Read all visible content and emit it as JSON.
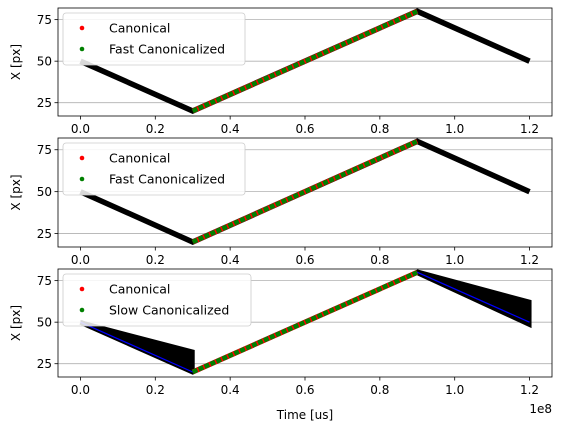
{
  "chart_data": [
    {
      "type": "scatter",
      "xlabel": "",
      "ylabel": "X [px]",
      "xlim": [
        -0.06,
        1.26
      ],
      "ylim": [
        17,
        82
      ],
      "xticks": [
        0.0,
        0.2,
        0.4,
        0.6,
        0.8,
        1.0,
        1.2
      ],
      "xtick_labels": [
        "0.0",
        "0.2",
        "0.4",
        "0.6",
        "0.8",
        "1.0",
        "1.2"
      ],
      "yticks": [
        25,
        50,
        75
      ],
      "ytick_labels": [
        "25",
        "50",
        "75"
      ],
      "grid": "y-axis only",
      "legend": {
        "placement": "top-left",
        "entries": [
          {
            "label": "Canonical",
            "color": "#ff0000"
          },
          {
            "label": "Fast Canonicalized",
            "color": "#008000"
          }
        ]
      },
      "series": [
        {
          "name": "Canonical",
          "color": "#ff0000",
          "x": [
            0.3,
            0.6,
            0.9
          ],
          "y": [
            20,
            50,
            80
          ]
        },
        {
          "name": "Fast Canonicalized",
          "color": "#008000",
          "x": [
            0.3,
            0.6,
            0.9
          ],
          "y": [
            20,
            50,
            80
          ]
        },
        {
          "color": "#000000",
          "x": [
            0.0,
            0.3,
            0.9,
            1.2
          ],
          "y": [
            50,
            20,
            80,
            50
          ]
        }
      ]
    },
    {
      "type": "scatter",
      "xlabel": "",
      "ylabel": "X [px]",
      "xlim": [
        -0.06,
        1.26
      ],
      "ylim": [
        17,
        82
      ],
      "xticks": [
        0.0,
        0.2,
        0.4,
        0.6,
        0.8,
        1.0,
        1.2
      ],
      "xtick_labels": [
        "0.0",
        "0.2",
        "0.4",
        "0.6",
        "0.8",
        "1.0",
        "1.2"
      ],
      "yticks": [
        25,
        50,
        75
      ],
      "ytick_labels": [
        "25",
        "50",
        "75"
      ],
      "grid": "y-axis only",
      "legend": {
        "placement": "top-left",
        "entries": [
          {
            "label": "Canonical",
            "color": "#ff0000"
          },
          {
            "label": "Fast Canonicalized",
            "color": "#008000"
          }
        ]
      },
      "series": [
        {
          "name": "Canonical",
          "color": "#ff0000",
          "x": [
            0.3,
            0.6,
            0.9
          ],
          "y": [
            20,
            50,
            80
          ]
        },
        {
          "name": "Fast Canonicalized",
          "color": "#008000",
          "x": [
            0.3,
            0.6,
            0.9
          ],
          "y": [
            20,
            50,
            80
          ]
        },
        {
          "color": "#000000",
          "x": [
            0.0,
            0.3,
            0.9,
            1.2
          ],
          "y": [
            50,
            20,
            80,
            50
          ]
        }
      ]
    },
    {
      "type": "scatter",
      "xlabel": "Time [us]",
      "ylabel": "X [px]",
      "x_offset_label": "1e8",
      "xlim": [
        -0.06,
        1.26
      ],
      "ylim": [
        17,
        82
      ],
      "xticks": [
        0.0,
        0.2,
        0.4,
        0.6,
        0.8,
        1.0,
        1.2
      ],
      "xtick_labels": [
        "0.0",
        "0.2",
        "0.4",
        "0.6",
        "0.8",
        "1.0",
        "1.2"
      ],
      "yticks": [
        25,
        50,
        75
      ],
      "ytick_labels": [
        "25",
        "50",
        "75"
      ],
      "grid": "y-axis only",
      "legend": {
        "placement": "top-left",
        "entries": [
          {
            "label": "Canonical",
            "color": "#ff0000"
          },
          {
            "label": "Slow Canonicalized",
            "color": "#008000"
          }
        ]
      },
      "series": [
        {
          "name": "Canonical",
          "color": "#ff0000",
          "x": [
            0.3,
            0.6,
            0.9
          ],
          "y": [
            20,
            50,
            80
          ]
        },
        {
          "name": "Slow Canonicalized",
          "color": "#008000",
          "x": [
            0.3,
            0.6,
            0.9
          ],
          "y": [
            20,
            50,
            80
          ]
        },
        {
          "color": "#000000",
          "x": [
            0.0,
            0.3,
            0.9,
            1.2
          ],
          "y": [
            50,
            20,
            80,
            50
          ],
          "spread": "wide fan"
        },
        {
          "color": "#0000ff",
          "x": [
            0.0,
            0.3,
            0.9,
            1.2
          ],
          "y": [
            50,
            20,
            80,
            50
          ]
        }
      ]
    }
  ]
}
